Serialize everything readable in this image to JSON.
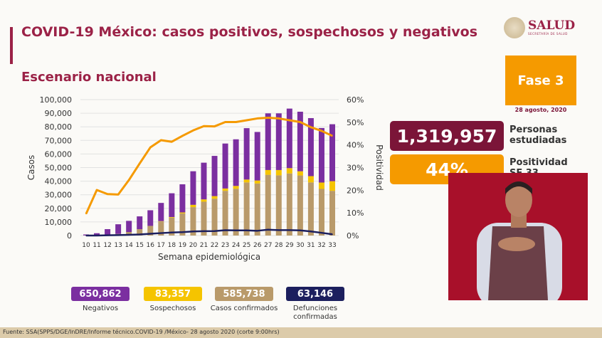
{
  "header": {
    "title": "COVID-19 México: casos positivos, sospechosos y negativos",
    "subtitle": "Escenario nacional",
    "logo_text": "SALUD",
    "logo_subtext": "SECRETARÍA DE SALUD"
  },
  "phase": {
    "label": "Fase 3",
    "date": "28 agosto, 2020"
  },
  "kpis": {
    "personas_value": "1,319,957",
    "personas_label_1": "Personas",
    "personas_label_2": "estudiadas",
    "positividad_value": "44%",
    "positividad_label": "Positividad",
    "positividad_sub": "SE 33"
  },
  "stats": [
    {
      "value": "650,862",
      "label": "Negativos",
      "color": "#7b2fa0"
    },
    {
      "value": "83,357",
      "label": "Sospechosos",
      "color": "#f5c400"
    },
    {
      "value": "585,738",
      "label": "Casos confirmados",
      "color": "#b99a6a"
    },
    {
      "value": "63,146",
      "label": "Defunciones confirmadas",
      "color": "#1c1f5e"
    }
  ],
  "footer": "Fuente: SSA(SPPS/DGE/InDRE/Informe técnico.COVID-19 /México- 28 agosto 2020 (corte 9:00hrs)",
  "chart_data": {
    "type": "bar",
    "stacked": true,
    "xlabel": "Semana epidemiológica",
    "ylabel": "Casos",
    "y2label": "Positividad",
    "ylim": [
      0,
      100000
    ],
    "y2lim": [
      0,
      60
    ],
    "yticks": [
      "0",
      "10,000",
      "20,000",
      "30,000",
      "40,000",
      "50,000",
      "60,000",
      "70,000",
      "80,000",
      "90,000",
      "100,000"
    ],
    "y2ticks": [
      "0%",
      "10%",
      "20%",
      "30%",
      "40%",
      "50%",
      "60%"
    ],
    "grid": true,
    "categories": [
      "10",
      "11",
      "12",
      "13",
      "14",
      "15",
      "16",
      "17",
      "18",
      "19",
      "20",
      "21",
      "22",
      "23",
      "24",
      "25",
      "26",
      "27",
      "28",
      "29",
      "30",
      "31",
      "32",
      "33"
    ],
    "series": [
      {
        "key": "confirmados",
        "color": "#b99a6a",
        "values": [
          100,
          200,
          500,
          1200,
          2600,
          4700,
          7100,
          10400,
          13200,
          16300,
          20900,
          24900,
          27100,
          32900,
          34400,
          39100,
          38300,
          44700,
          44300,
          45700,
          44200,
          39100,
          34300,
          32900
        ]
      },
      {
        "key": "sospechosos",
        "color": "#f5c400",
        "values": [
          0,
          0,
          0,
          0,
          0,
          0,
          0,
          200,
          400,
          700,
          1700,
          1700,
          1900,
          1700,
          2100,
          2100,
          2200,
          3500,
          3900,
          3900,
          3100,
          4600,
          4700,
          7100
        ]
      },
      {
        "key": "negativos",
        "color": "#7b2fa0",
        "values": [
          700,
          1500,
          4200,
          7100,
          8200,
          9400,
          11500,
          13400,
          17500,
          20700,
          24700,
          27000,
          29600,
          33100,
          34300,
          37800,
          35700,
          41700,
          41700,
          43800,
          43800,
          42700,
          40100,
          41900
        ]
      },
      {
        "key": "defunciones",
        "type": "line",
        "color": "#1c1f5e",
        "axis": "left",
        "values": [
          0,
          0,
          200,
          300,
          500,
          800,
          1300,
          1800,
          2200,
          2500,
          3000,
          3200,
          3300,
          3900,
          3800,
          3800,
          3500,
          4300,
          4000,
          4000,
          3800,
          3000,
          2000,
          900
        ]
      },
      {
        "key": "positividad",
        "type": "line",
        "color": "#f59a00",
        "axis": "right",
        "values": [
          9.6,
          20.1,
          18.3,
          18.1,
          24.5,
          31.8,
          38.9,
          42.1,
          41.4,
          44.0,
          46.4,
          48.3,
          48.2,
          50.1,
          50.1,
          50.9,
          51.7,
          52.0,
          51.7,
          50.9,
          50.1,
          47.8,
          46.2,
          44.0
        ]
      }
    ]
  }
}
